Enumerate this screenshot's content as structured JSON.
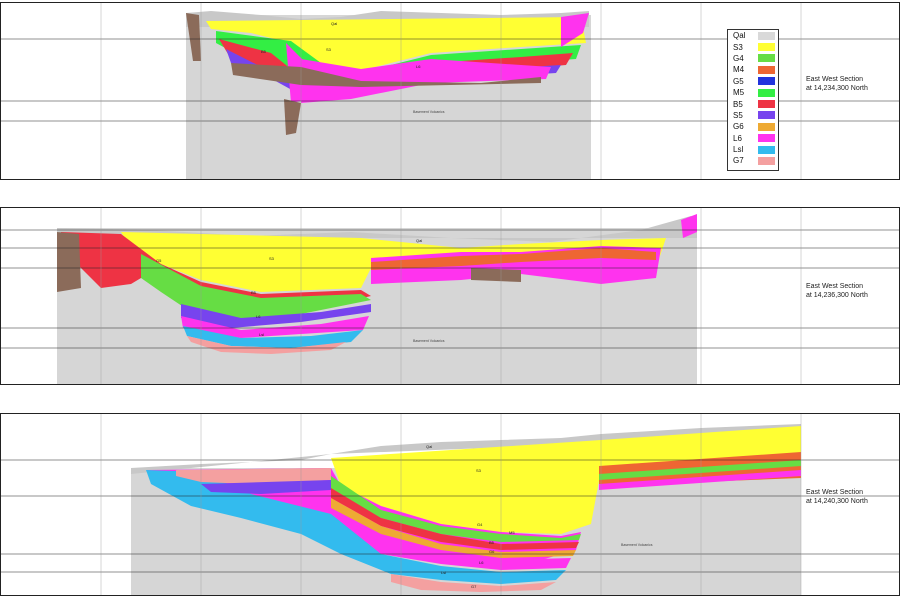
{
  "legend": {
    "items": [
      {
        "label": "Qal",
        "color": "#d9d9d9"
      },
      {
        "label": "S3",
        "color": "#ffff33"
      },
      {
        "label": "G4",
        "color": "#66dd44"
      },
      {
        "label": "M4",
        "color": "#ee6633"
      },
      {
        "label": "G5",
        "color": "#2233dd"
      },
      {
        "label": "M5",
        "color": "#33ee44"
      },
      {
        "label": "B5",
        "color": "#ee3344"
      },
      {
        "label": "S5",
        "color": "#7744ee"
      },
      {
        "label": "G6",
        "color": "#eeaa33"
      },
      {
        "label": "L6",
        "color": "#ff33ee"
      },
      {
        "label": "Lsl",
        "color": "#33bbee"
      },
      {
        "label": "G7",
        "color": "#f4a0a0"
      }
    ]
  },
  "sections": [
    {
      "title_line1": "East West Section",
      "title_line2": "at 14,234,300 North",
      "basement_label": "Basement Volcanics",
      "unit_labels": [
        "Qal",
        "S3",
        "B5",
        "L6"
      ]
    },
    {
      "title_line1": "East West Section",
      "title_line2": "at 14,236,300 North",
      "basement_label": "Basement Volcanics",
      "unit_labels": [
        "Qal",
        "S3",
        "G5",
        "B5",
        "L6",
        "Lsl"
      ]
    },
    {
      "title_line1": "East West Section",
      "title_line2": "at 14,240,300 North",
      "basement_label": "Basement Volcanics",
      "unit_labels": [
        "Qal",
        "S3",
        "G4",
        "M5",
        "B5",
        "G6",
        "L6",
        "Lsl",
        "G7"
      ]
    }
  ],
  "colors": {
    "basement": "#d6d6d6",
    "alluvium": "#c8c8c8",
    "brown_fault": "#8b6b5a",
    "gridline": "#222222"
  }
}
